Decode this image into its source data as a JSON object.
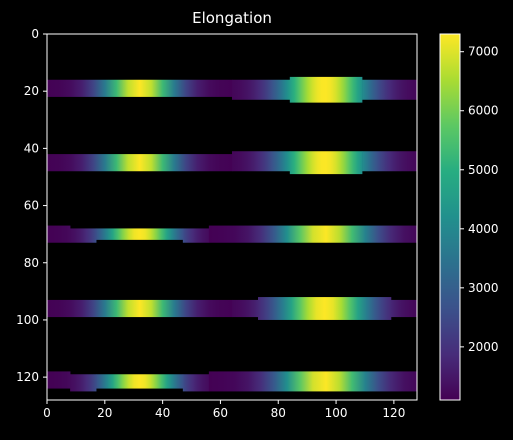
{
  "chart_data": {
    "type": "heatmap",
    "title": "Elongation",
    "xlabel": "",
    "ylabel": "",
    "xlim": [
      0,
      128
    ],
    "ylim": [
      128,
      0
    ],
    "x_ticks": [
      0,
      20,
      40,
      60,
      80,
      100,
      120
    ],
    "y_ticks": [
      0,
      20,
      40,
      60,
      80,
      100,
      120
    ],
    "colorbar": {
      "min": 1100,
      "max": 7300,
      "ticks": [
        2000,
        3000,
        4000,
        5000,
        6000,
        7000
      ]
    },
    "colormap": "viridis",
    "background_value": "black",
    "bands": [
      {
        "segments": [
          {
            "x0": 0,
            "x1": 64,
            "y0": 16,
            "y1": 22,
            "center": 32,
            "sigma": 9,
            "peak": 7300
          },
          {
            "x0": 64,
            "x1": 84,
            "y0": 16,
            "y1": 23,
            "center": 96,
            "sigma": 11,
            "peak": 7300
          },
          {
            "x0": 84,
            "x1": 109,
            "y0": 15,
            "y1": 24,
            "center": 96,
            "sigma": 11,
            "peak": 7300
          },
          {
            "x0": 109,
            "x1": 128,
            "y0": 16,
            "y1": 23,
            "center": 96,
            "sigma": 11,
            "peak": 7300
          }
        ]
      },
      {
        "segments": [
          {
            "x0": 0,
            "x1": 64,
            "y0": 42,
            "y1": 48,
            "center": 32,
            "sigma": 9,
            "peak": 7300
          },
          {
            "x0": 64,
            "x1": 84,
            "y0": 41,
            "y1": 48,
            "center": 96,
            "sigma": 11,
            "peak": 7300
          },
          {
            "x0": 84,
            "x1": 109,
            "y0": 41,
            "y1": 49,
            "center": 96,
            "sigma": 11,
            "peak": 7300
          },
          {
            "x0": 109,
            "x1": 128,
            "y0": 41,
            "y1": 48,
            "center": 96,
            "sigma": 11,
            "peak": 7300
          }
        ]
      },
      {
        "segments": [
          {
            "x0": 0,
            "x1": 8,
            "y0": 67,
            "y1": 73,
            "center": 32,
            "sigma": 9,
            "peak": 7300
          },
          {
            "x0": 8,
            "x1": 17,
            "y0": 68,
            "y1": 73,
            "center": 32,
            "sigma": 9,
            "peak": 7300
          },
          {
            "x0": 17,
            "x1": 47,
            "y0": 68,
            "y1": 72,
            "center": 32,
            "sigma": 9,
            "peak": 7300
          },
          {
            "x0": 47,
            "x1": 56,
            "y0": 68,
            "y1": 73,
            "center": 32,
            "sigma": 9,
            "peak": 7300
          },
          {
            "x0": 56,
            "x1": 128,
            "y0": 67,
            "y1": 73,
            "center": 96,
            "sigma": 11,
            "peak": 7300
          }
        ]
      },
      {
        "segments": [
          {
            "x0": 0,
            "x1": 64,
            "y0": 93,
            "y1": 99,
            "center": 32,
            "sigma": 9,
            "peak": 7300
          },
          {
            "x0": 64,
            "x1": 73,
            "y0": 93,
            "y1": 99,
            "center": 96,
            "sigma": 11,
            "peak": 7300
          },
          {
            "x0": 73,
            "x1": 119,
            "y0": 92,
            "y1": 100,
            "center": 96,
            "sigma": 11,
            "peak": 7300
          },
          {
            "x0": 119,
            "x1": 128,
            "y0": 93,
            "y1": 99,
            "center": 96,
            "sigma": 11,
            "peak": 7300
          }
        ]
      },
      {
        "segments": [
          {
            "x0": 0,
            "x1": 8,
            "y0": 118,
            "y1": 124,
            "center": 32,
            "sigma": 9,
            "peak": 7300
          },
          {
            "x0": 8,
            "x1": 17,
            "y0": 119,
            "y1": 125,
            "center": 32,
            "sigma": 9,
            "peak": 7300
          },
          {
            "x0": 17,
            "x1": 47,
            "y0": 119,
            "y1": 124,
            "center": 32,
            "sigma": 9,
            "peak": 7300
          },
          {
            "x0": 47,
            "x1": 56,
            "y0": 119,
            "y1": 125,
            "center": 32,
            "sigma": 9,
            "peak": 7300
          },
          {
            "x0": 56,
            "x1": 128,
            "y0": 118,
            "y1": 125,
            "center": 96,
            "sigma": 11,
            "peak": 7300
          }
        ]
      }
    ]
  },
  "colors": {
    "background": "#000000",
    "axis": "#ffffff",
    "text": "#ffffff"
  }
}
